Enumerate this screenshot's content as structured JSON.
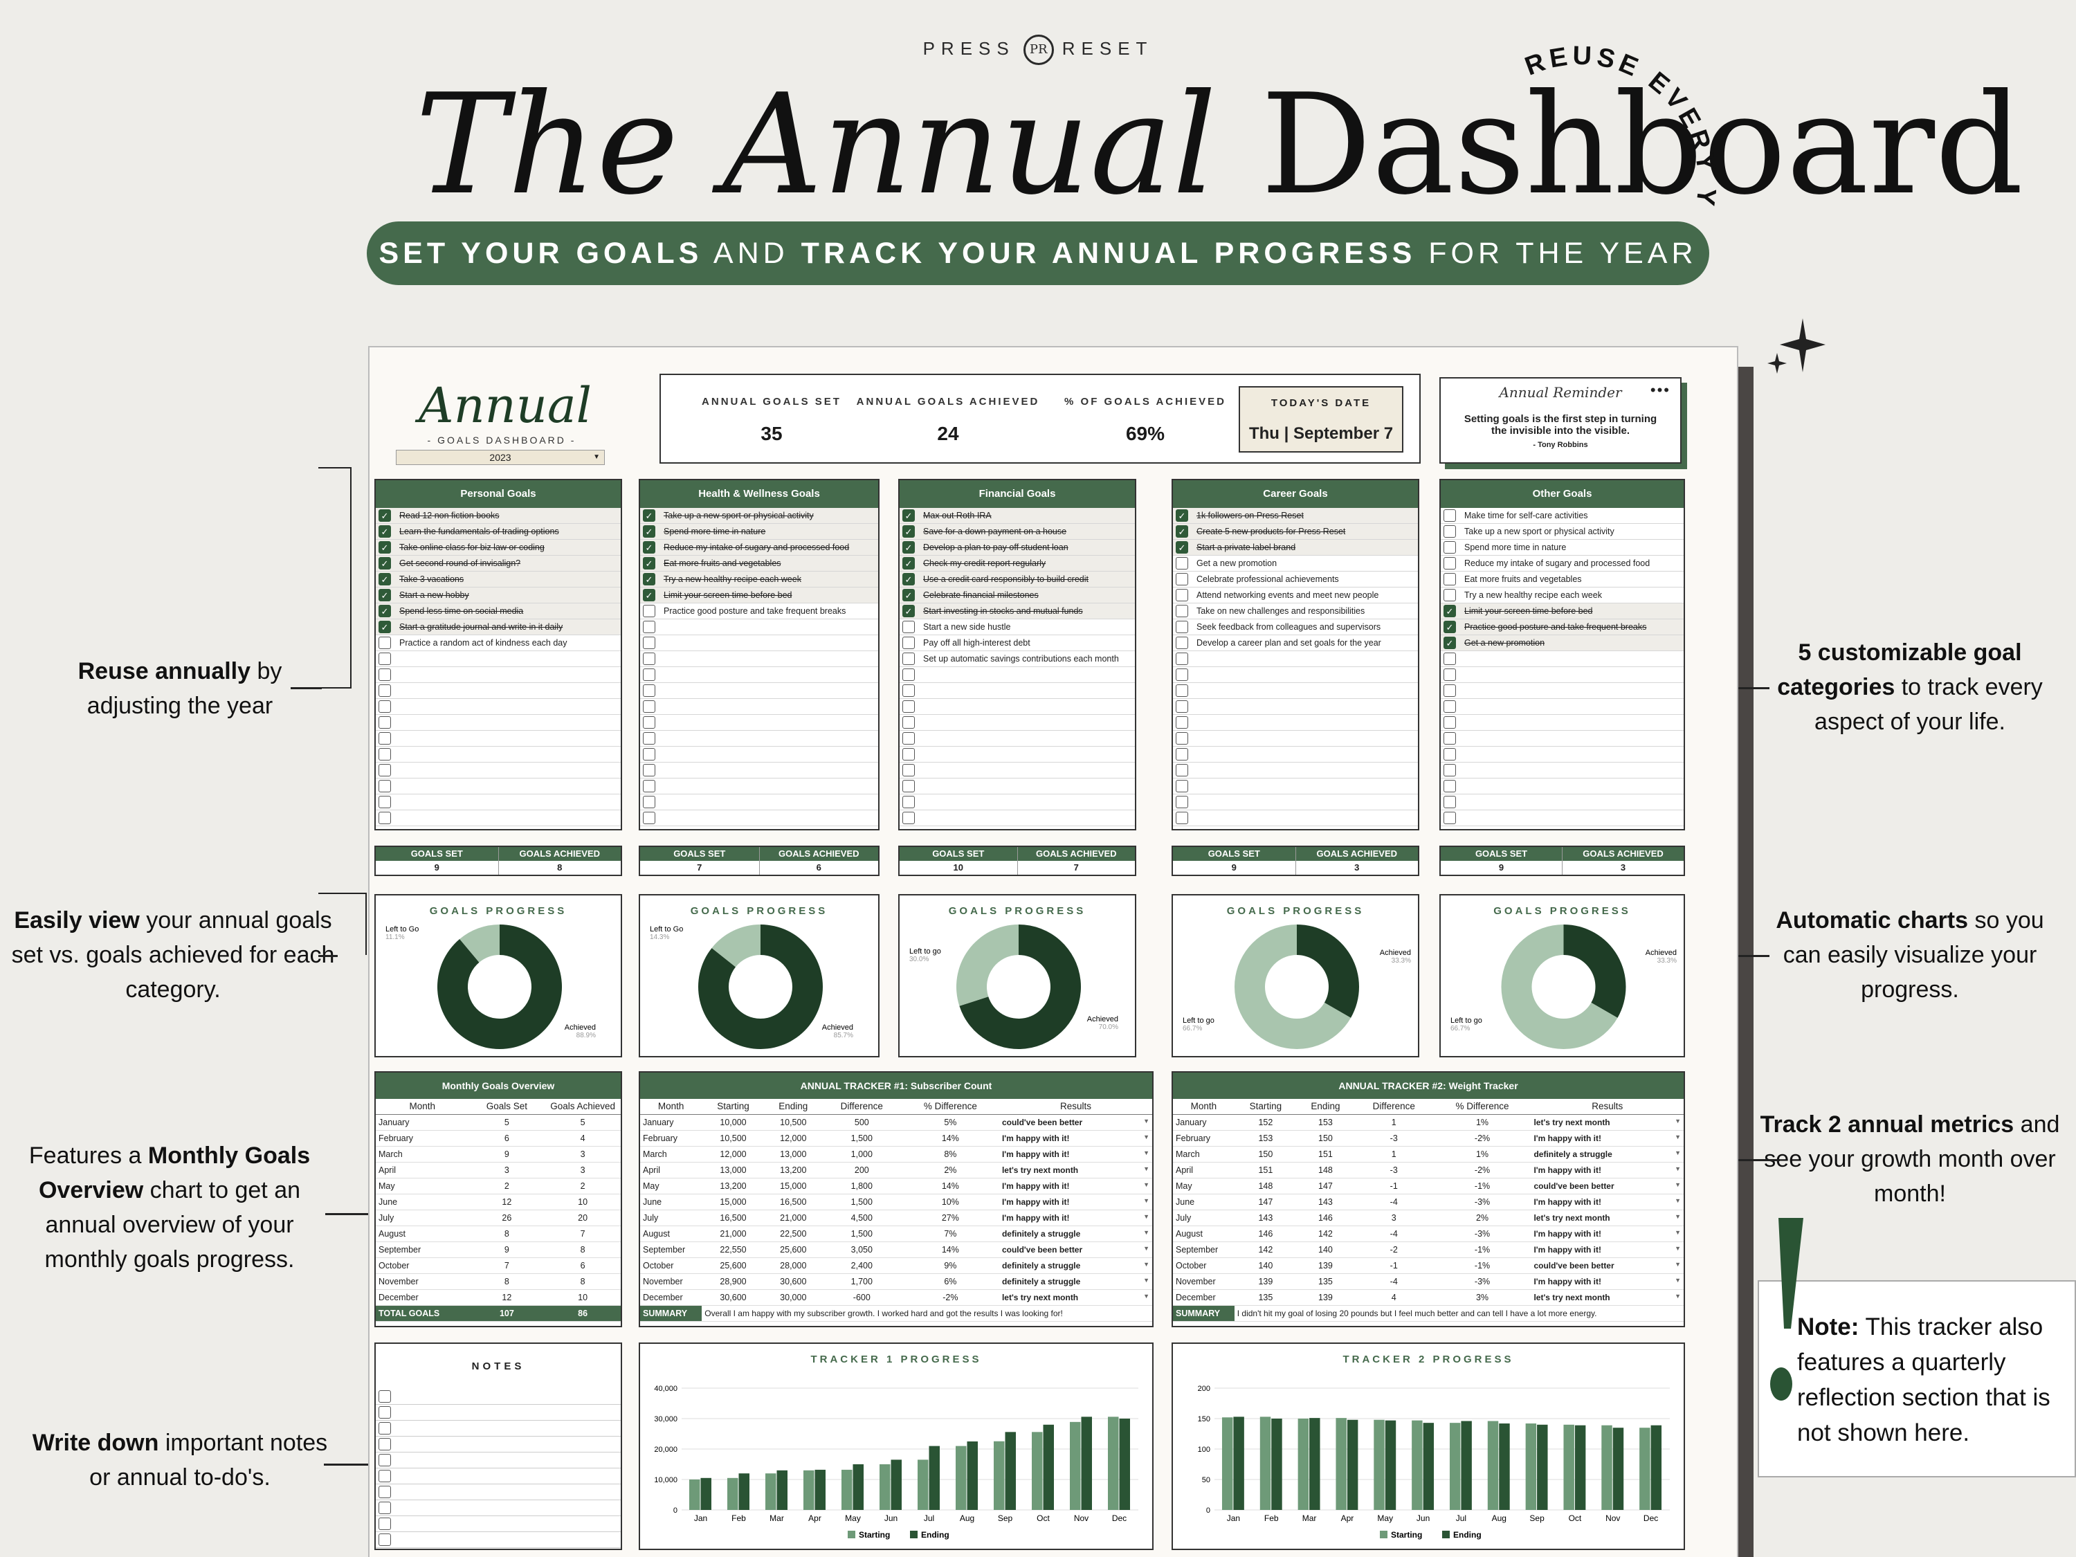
{
  "header": {
    "brand_left": "PRESS",
    "brand_right": "RESET",
    "brand_logo": "PR",
    "title_italic": "The Annual",
    "title_plain": "Dashboard",
    "arc_text": "REUSE EVERY YEAR!",
    "banner_parts": [
      "SET YOUR GOALS",
      " AND ",
      "TRACK YOUR ANNUAL PROGRESS",
      " FOR THE YEAR"
    ]
  },
  "logo": {
    "title": "Annual",
    "subtitle": "- GOALS DASHBOARD -",
    "year": "2023"
  },
  "stats": [
    {
      "label": "ANNUAL GOALS SET",
      "value": "35"
    },
    {
      "label": "ANNUAL GOALS ACHIEVED",
      "value": "24"
    },
    {
      "label": "% OF GOALS ACHIEVED",
      "value": "69%"
    }
  ],
  "today": {
    "label": "TODAY'S DATE",
    "value": "Thu |  September 7"
  },
  "reminder": {
    "title": "Annual Reminder",
    "dots": "•••",
    "quote": "Setting goals is the first step in turning the invisible into the visible.",
    "author": "- Tony Robbins"
  },
  "categories": [
    {
      "name": "Personal Goals",
      "goals": [
        {
          "t": "Read 12 non fiction books",
          "d": true
        },
        {
          "t": "Learn the fundamentals of trading options",
          "d": true
        },
        {
          "t": "Take online class for biz law or coding",
          "d": true
        },
        {
          "t": "Get second round of invisalign?",
          "d": true
        },
        {
          "t": "Take 3 vacations",
          "d": true
        },
        {
          "t": "Start a new hobby",
          "d": true
        },
        {
          "t": "Spend less time on social media",
          "d": true
        },
        {
          "t": "Start a gratitude journal and write in it daily",
          "d": true
        },
        {
          "t": "Practice a random act of kindness each day",
          "d": false
        }
      ],
      "set": "9",
      "achieved": "8",
      "left_label": "Left to Go",
      "left_pct": "11.1%",
      "ach_label": "Achieved",
      "ach_pct": "88.9%",
      "achieved_frac": 0.889
    },
    {
      "name": "Health & Wellness Goals",
      "goals": [
        {
          "t": "Take up a new sport or physical activity",
          "d": true
        },
        {
          "t": "Spend more time in nature",
          "d": true
        },
        {
          "t": "Reduce my intake of sugary and processed food",
          "d": true
        },
        {
          "t": "Eat more fruits and vegetables",
          "d": true
        },
        {
          "t": "Try a new healthy recipe each week",
          "d": true
        },
        {
          "t": "Limit your screen time before bed",
          "d": true
        },
        {
          "t": "Practice good posture and take frequent breaks",
          "d": false
        }
      ],
      "set": "7",
      "achieved": "6",
      "left_label": "Left to Go",
      "left_pct": "14.3%",
      "ach_label": "Achieved",
      "ach_pct": "85.7%",
      "achieved_frac": 0.857
    },
    {
      "name": "Financial Goals",
      "goals": [
        {
          "t": "Max out Roth IRA",
          "d": true
        },
        {
          "t": "Save for a down payment on a house",
          "d": true
        },
        {
          "t": "Develop a plan to pay off student loan",
          "d": true
        },
        {
          "t": "Check my credit report regularly",
          "d": true
        },
        {
          "t": "Use a credit card responsibly to build credit",
          "d": true
        },
        {
          "t": "Celebrate financial milestones",
          "d": true
        },
        {
          "t": "Start investing in stocks and mutual funds",
          "d": true
        },
        {
          "t": "Start a new side hustle",
          "d": false
        },
        {
          "t": "Pay off all high-interest debt",
          "d": false
        },
        {
          "t": "Set up automatic savings contributions each month",
          "d": false
        }
      ],
      "set": "10",
      "achieved": "7",
      "left_label": "Left to go",
      "left_pct": "30.0%",
      "ach_label": "Achieved",
      "ach_pct": "70.0%",
      "achieved_frac": 0.7
    },
    {
      "name": "Career Goals",
      "goals": [
        {
          "t": "1k followers on Press Reset",
          "d": true
        },
        {
          "t": "Create 5 new products for Press Reset",
          "d": true
        },
        {
          "t": "Start a private label brand",
          "d": true
        },
        {
          "t": "Get a new promotion",
          "d": false
        },
        {
          "t": "Celebrate professional achievements",
          "d": false
        },
        {
          "t": "Attend networking events and meet new people",
          "d": false
        },
        {
          "t": "Take on new challenges and responsibilities",
          "d": false
        },
        {
          "t": "Seek feedback from colleagues and supervisors",
          "d": false
        },
        {
          "t": "Develop a career plan and set goals for the year",
          "d": false
        }
      ],
      "set": "9",
      "achieved": "3",
      "left_label": "Left to go",
      "left_pct": "66.7%",
      "ach_label": "Achieved",
      "ach_pct": "33.3%",
      "achieved_frac": 0.333
    },
    {
      "name": "Other Goals",
      "goals": [
        {
          "t": "Make time for self-care activities",
          "d": false
        },
        {
          "t": "Take up a new sport or physical activity",
          "d": false
        },
        {
          "t": "Spend more time in nature",
          "d": false
        },
        {
          "t": "Reduce my intake of sugary and processed food",
          "d": false
        },
        {
          "t": "Eat more fruits and vegetables",
          "d": false
        },
        {
          "t": "Try a new healthy recipe each week",
          "d": false
        },
        {
          "t": "Limit your screen time before bed",
          "d": true
        },
        {
          "t": "Practice good posture and take frequent breaks",
          "d": true
        },
        {
          "t": "Get a new promotion",
          "d": true
        }
      ],
      "set": "9",
      "achieved": "3",
      "left_label": "Left to go",
      "left_pct": "66.7%",
      "ach_label": "Achieved",
      "ach_pct": "33.3%",
      "achieved_frac": 0.333
    }
  ],
  "labels": {
    "goals_set": "GOALS SET",
    "goals_achieved": "GOALS ACHIEVED",
    "goals_progress": "GOALS PROGRESS",
    "notes": "NOTES",
    "month": "Month"
  },
  "monthly": {
    "title": "Monthly Goals Overview",
    "cols": [
      "Month",
      "Goals Set",
      "Goals Achieved"
    ],
    "rows": [
      [
        "January",
        "5",
        "5"
      ],
      [
        "February",
        "6",
        "4"
      ],
      [
        "March",
        "9",
        "3"
      ],
      [
        "April",
        "3",
        "3"
      ],
      [
        "May",
        "2",
        "2"
      ],
      [
        "June",
        "12",
        "10"
      ],
      [
        "July",
        "26",
        "20"
      ],
      [
        "August",
        "8",
        "7"
      ],
      [
        "September",
        "9",
        "8"
      ],
      [
        "October",
        "7",
        "6"
      ],
      [
        "November",
        "8",
        "8"
      ],
      [
        "December",
        "12",
        "10"
      ]
    ],
    "total": [
      "TOTAL GOALS",
      "107",
      "86"
    ]
  },
  "tracker1": {
    "title": "ANNUAL TRACKER #1:  Subscriber Count",
    "cols": [
      "Month",
      "Starting",
      "Ending",
      "Difference",
      "% Difference",
      "Results"
    ],
    "rows": [
      [
        "January",
        "10,000",
        "10,500",
        "500",
        "5%",
        "could've been better"
      ],
      [
        "February",
        "10,500",
        "12,000",
        "1,500",
        "14%",
        "I'm happy with it!"
      ],
      [
        "March",
        "12,000",
        "13,000",
        "1,000",
        "8%",
        "I'm happy with it!"
      ],
      [
        "April",
        "13,000",
        "13,200",
        "200",
        "2%",
        "let's try next month"
      ],
      [
        "May",
        "13,200",
        "15,000",
        "1,800",
        "14%",
        "I'm happy with it!"
      ],
      [
        "June",
        "15,000",
        "16,500",
        "1,500",
        "10%",
        "I'm happy with it!"
      ],
      [
        "July",
        "16,500",
        "21,000",
        "4,500",
        "27%",
        "I'm happy with it!"
      ],
      [
        "August",
        "21,000",
        "22,500",
        "1,500",
        "7%",
        "definitely a struggle"
      ],
      [
        "September",
        "22,550",
        "25,600",
        "3,050",
        "14%",
        "could've been better"
      ],
      [
        "October",
        "25,600",
        "28,000",
        "2,400",
        "9%",
        "definitely a struggle"
      ],
      [
        "November",
        "28,900",
        "30,600",
        "1,700",
        "6%",
        "definitely a struggle"
      ],
      [
        "December",
        "30,600",
        "30,000",
        "-600",
        "-2%",
        "let's try next month"
      ]
    ],
    "summary_label": "SUMMARY",
    "summary": "Overall I am happy with my subscriber growth. I worked hard and got the results I was looking for!"
  },
  "tracker2": {
    "title": "ANNUAL TRACKER #2:  Weight Tracker",
    "cols": [
      "Month",
      "Starting",
      "Ending",
      "Difference",
      "% Difference",
      "Results"
    ],
    "rows": [
      [
        "January",
        "152",
        "153",
        "1",
        "1%",
        "let's try next month"
      ],
      [
        "February",
        "153",
        "150",
        "-3",
        "-2%",
        "I'm happy with it!"
      ],
      [
        "March",
        "150",
        "151",
        "1",
        "1%",
        "definitely a struggle"
      ],
      [
        "April",
        "151",
        "148",
        "-3",
        "-2%",
        "I'm happy with it!"
      ],
      [
        "May",
        "148",
        "147",
        "-1",
        "-1%",
        "could've been better"
      ],
      [
        "June",
        "147",
        "143",
        "-4",
        "-3%",
        "I'm happy with it!"
      ],
      [
        "July",
        "143",
        "146",
        "3",
        "2%",
        "let's try next month"
      ],
      [
        "August",
        "146",
        "142",
        "-4",
        "-3%",
        "I'm happy with it!"
      ],
      [
        "September",
        "142",
        "140",
        "-2",
        "-1%",
        "I'm happy with it!"
      ],
      [
        "October",
        "140",
        "139",
        "-1",
        "-1%",
        "could've been better"
      ],
      [
        "November",
        "139",
        "135",
        "-4",
        "-3%",
        "I'm happy with it!"
      ],
      [
        "December",
        "135",
        "139",
        "4",
        "3%",
        "let's try next month"
      ]
    ],
    "summary_label": "SUMMARY",
    "summary": "I didn't hit my goal of losing 20 pounds but I feel much better and can tell I have a lot more energy."
  },
  "chart_data": [
    {
      "type": "bar",
      "title": "TRACKER 1 PROGRESS",
      "categories": [
        "Jan",
        "Feb",
        "Mar",
        "Apr",
        "May",
        "Jun",
        "Jul",
        "Aug",
        "Sep",
        "Oct",
        "Nov",
        "Dec"
      ],
      "series": [
        {
          "name": "Starting",
          "values": [
            10000,
            10500,
            12000,
            13000,
            13200,
            15000,
            16500,
            21000,
            22550,
            25600,
            28900,
            30600
          ]
        },
        {
          "name": "Ending",
          "values": [
            10500,
            12000,
            13000,
            13200,
            15000,
            16500,
            21000,
            22500,
            25600,
            28000,
            30600,
            30000
          ]
        }
      ],
      "ylim": [
        0,
        40000
      ],
      "yticks": [
        "0",
        "10,000",
        "20,000",
        "30,000",
        "40,000"
      ],
      "legend": "bottom",
      "grid": true
    },
    {
      "type": "bar",
      "title": "TRACKER 2 PROGRESS",
      "categories": [
        "Jan",
        "Feb",
        "Mar",
        "Apr",
        "May",
        "Jun",
        "Jul",
        "Aug",
        "Sep",
        "Oct",
        "Nov",
        "Dec"
      ],
      "series": [
        {
          "name": "Starting",
          "values": [
            152,
            153,
            150,
            151,
            148,
            147,
            143,
            146,
            142,
            140,
            139,
            135
          ]
        },
        {
          "name": "Ending",
          "values": [
            153,
            150,
            151,
            148,
            147,
            143,
            146,
            142,
            140,
            139,
            135,
            139
          ]
        }
      ],
      "ylim": [
        0,
        200
      ],
      "yticks": [
        "0",
        "50",
        "100",
        "150",
        "200"
      ],
      "legend": "bottom",
      "grid": true
    }
  ],
  "colors": {
    "dark": "#1e3d26",
    "light": "#a9c5ae",
    "accent": "#456a4c",
    "bar_start": "#6e9a78",
    "bar_end": "#2a5434"
  },
  "annotations": {
    "left": [
      {
        "parts": [
          [
            "Reuse annually",
            true
          ],
          [
            " by adjusting the year",
            false
          ]
        ]
      },
      {
        "parts": [
          [
            "Easily view",
            true
          ],
          [
            " your annual goals set vs. goals achieved for each category.",
            false
          ]
        ]
      },
      {
        "parts": [
          [
            "Features a ",
            false
          ],
          [
            "Monthly Goals Overview",
            true
          ],
          [
            " chart to get an annual overview of your monthly goals progress.",
            false
          ]
        ]
      },
      {
        "parts": [
          [
            "Write down",
            true
          ],
          [
            " important notes or annual to-do's.",
            false
          ]
        ]
      }
    ],
    "right": [
      {
        "parts": [
          [
            "5 customizable goal categories",
            true
          ],
          [
            " to track every aspect of your life.",
            false
          ]
        ]
      },
      {
        "parts": [
          [
            "Automatic charts",
            true
          ],
          [
            " so you can easily visualize your progress.",
            false
          ]
        ]
      },
      {
        "parts": [
          [
            "Track 2 annual metrics",
            true
          ],
          [
            " and see your growth month over month!",
            false
          ]
        ]
      }
    ],
    "note": [
      [
        "Note:",
        true
      ],
      [
        " This tracker also features a quarterly reflection section that is not shown here.",
        false
      ]
    ]
  }
}
